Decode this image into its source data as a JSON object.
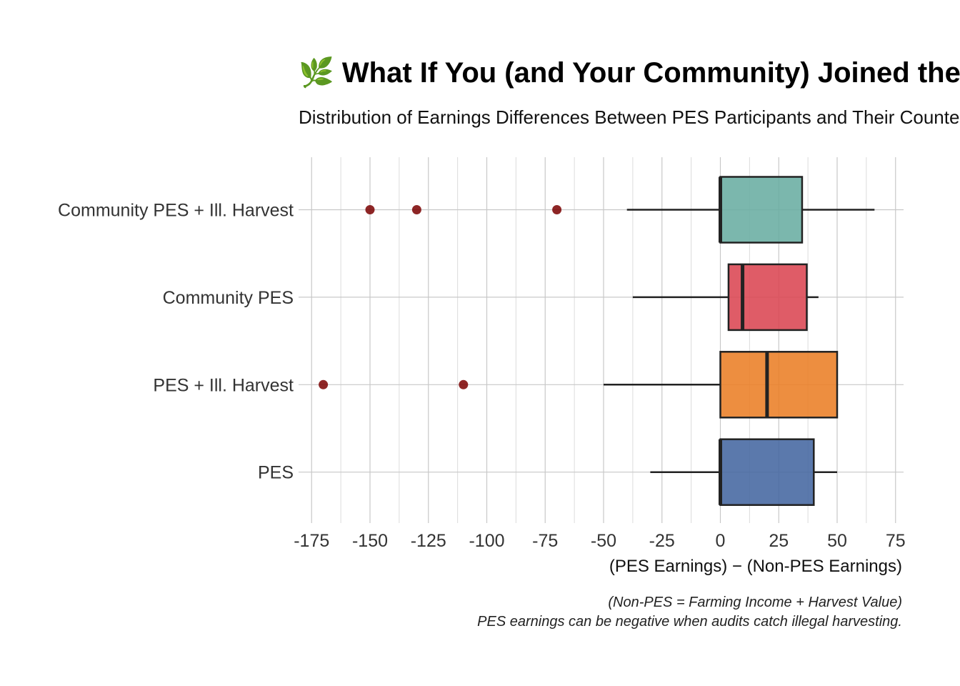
{
  "chart_data": {
    "type": "boxplot",
    "title": "🌿 What If You (and Your Community) Joined the PES Program?",
    "subtitle": "Distribution of Earnings Differences Between PES Participants and Their Counterparts",
    "xlabel": "(PES Earnings) − (Non-PES Earnings)",
    "ylabel": "",
    "caption_lines": [
      "(Non-PES = Farming Income + Harvest Value)",
      "PES earnings can be negative when audits catch illegal harvesting."
    ],
    "xlim": [
      -180,
      78
    ],
    "xticks": [
      -175,
      -150,
      -125,
      -100,
      -75,
      -50,
      -25,
      0,
      25,
      50,
      75
    ],
    "grid": true,
    "orientation": "horizontal",
    "categories": [
      "Community PES + Ill. Harvest",
      "Community PES",
      "PES + Ill. Harvest",
      "PES"
    ],
    "boxes": [
      {
        "category": "Community PES + Ill. Harvest",
        "color": "#69ADA2",
        "whisker_low": -40,
        "q1": 0,
        "median": 0,
        "q3": 35,
        "whisker_high": 66,
        "outliers": [
          -150,
          -130,
          -70
        ]
      },
      {
        "category": "Community PES",
        "color": "#DB4552",
        "whisker_low": -37.5,
        "q1": 3.5,
        "median": 9.5,
        "q3": 37,
        "whisker_high": 42,
        "outliers": []
      },
      {
        "category": "PES + Ill. Harvest",
        "color": "#EB7E26",
        "whisker_low": -50,
        "q1": 0,
        "median": 20,
        "q3": 50,
        "whisker_high": 50,
        "outliers": [
          -170,
          -110
        ]
      },
      {
        "category": "PES",
        "color": "#4467A0",
        "whisker_low": -30,
        "q1": 0,
        "median": 0,
        "q3": 40,
        "whisker_high": 50,
        "outliers": []
      }
    ],
    "outlier_color": "#7A0000"
  }
}
